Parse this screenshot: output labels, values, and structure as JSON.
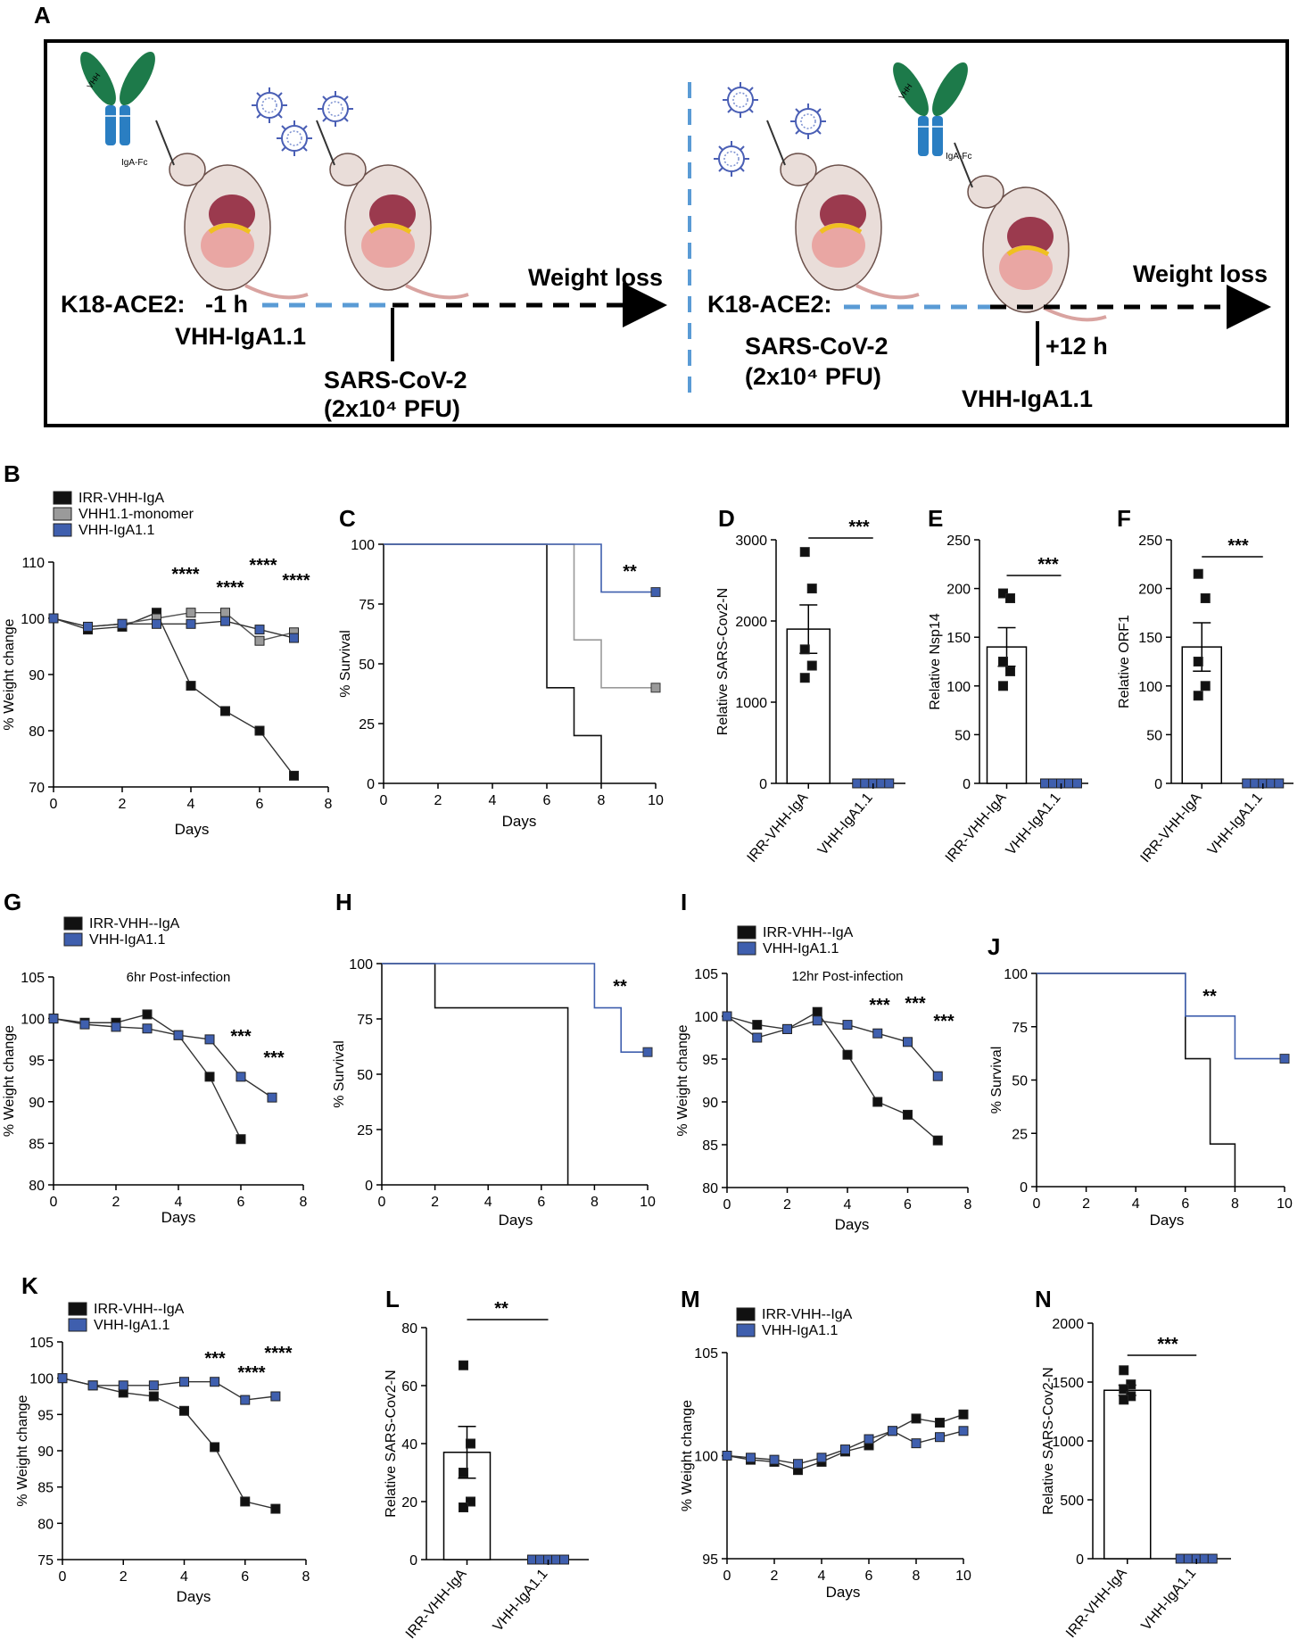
{
  "panel_letters": {
    "A": "A",
    "B": "B",
    "C": "C",
    "D": "D",
    "E": "E",
    "F": "F",
    "G": "G",
    "H": "H",
    "I": "I",
    "J": "J",
    "K": "K",
    "L": "L",
    "M": "M",
    "N": "N"
  },
  "schematic": {
    "left": {
      "strain": "K18-ACE2:",
      "time": "-1 h",
      "treatment": "VHH-IgA1.1",
      "weight": "Weight loss",
      "virus": "SARS-CoV-2",
      "dose": "(2x10⁴ PFU)",
      "fc": "IgA-Fc",
      "vhh": "VHH"
    },
    "right": {
      "strain": "K18-ACE2:",
      "virus": "SARS-CoV-2",
      "dose": "(2x10⁴ PFU)",
      "time": "+12 h",
      "treatment": "VHH-IgA1.1",
      "weight": "Weight loss",
      "fc": "IgA-Fc",
      "vhh": "VHH"
    }
  },
  "colors": {
    "irr": "#111111",
    "mono": "#9a9a9a",
    "vhh": "#3f5fae"
  },
  "chart_data": [
    {
      "panel": "B",
      "type": "line",
      "xlabel": "Days",
      "ylabel": "% Weight change",
      "xlim": [
        0,
        8
      ],
      "ylim": [
        70,
        110
      ],
      "xticks": [
        "0",
        "2",
        "4",
        "6",
        "8"
      ],
      "yticks": [
        "70",
        "80",
        "90",
        "100",
        "110"
      ],
      "legend": [
        "IRR-VHH-IgA",
        "VHH1.1-monomer",
        "VHH-IgA1.1"
      ],
      "series": [
        {
          "name": "IRR-VHH-IgA",
          "x": [
            0,
            1,
            2,
            3,
            4,
            5,
            6,
            7
          ],
          "values": [
            100,
            98,
            98.5,
            101,
            88,
            83.5,
            80,
            72
          ]
        },
        {
          "name": "VHH1.1-monomer",
          "x": [
            0,
            1,
            2,
            3,
            4,
            5,
            6,
            7
          ],
          "values": [
            100,
            98.5,
            99,
            100,
            101,
            101,
            96,
            97.5
          ]
        },
        {
          "name": "VHH-IgA1.1",
          "x": [
            0,
            1,
            2,
            3,
            4,
            5,
            6,
            7
          ],
          "values": [
            100,
            98.5,
            99,
            99,
            99,
            99.5,
            98,
            96.5
          ]
        }
      ],
      "annotations": [
        "****",
        "****",
        "****",
        "****"
      ]
    },
    {
      "panel": "C",
      "type": "line",
      "xlabel": "Days",
      "ylabel": "% Survival",
      "xlim": [
        0,
        10
      ],
      "ylim": [
        0,
        100
      ],
      "xticks": [
        "0",
        "2",
        "4",
        "6",
        "8",
        "10"
      ],
      "yticks": [
        "0",
        "25",
        "50",
        "75",
        "100"
      ],
      "series": [
        {
          "name": "IRR-VHH-IgA",
          "x": [
            0,
            6,
            7,
            8
          ],
          "values": [
            100,
            40,
            20,
            0
          ]
        },
        {
          "name": "VHH1.1-monomer",
          "x": [
            0,
            7,
            8,
            10
          ],
          "values": [
            100,
            60,
            40,
            40
          ]
        },
        {
          "name": "VHH-IgA1.1",
          "x": [
            0,
            8,
            10
          ],
          "values": [
            100,
            80,
            80
          ]
        }
      ],
      "annotations": [
        "**"
      ]
    },
    {
      "panel": "D",
      "type": "bar",
      "ylabel": "Relative SARS-Cov2-N",
      "categories": [
        "IRR-VHH-IgA",
        "VHH-IgA1.1"
      ],
      "values": [
        1900,
        0
      ],
      "ylim": [
        0,
        3000
      ],
      "yticks": [
        "0",
        "1000",
        "2000",
        "3000"
      ],
      "points": [
        [
          2850,
          2400,
          1650,
          1450,
          1300
        ],
        [
          0,
          0,
          0,
          0,
          0
        ]
      ],
      "annotations": [
        "***"
      ]
    },
    {
      "panel": "E",
      "type": "bar",
      "ylabel": "Relative Nsp14",
      "categories": [
        "IRR-VHH-IgA",
        "VHH-IgA1.1"
      ],
      "values": [
        140,
        0
      ],
      "ylim": [
        0,
        250
      ],
      "yticks": [
        "0",
        "50",
        "100",
        "150",
        "200",
        "250"
      ],
      "points": [
        [
          195,
          190,
          125,
          115,
          100
        ],
        [
          0,
          0,
          0,
          0,
          0
        ]
      ],
      "annotations": [
        "***"
      ]
    },
    {
      "panel": "F",
      "type": "bar",
      "ylabel": "Relative ORF1",
      "categories": [
        "IRR-VHH-IgA",
        "VHH-IgA1.1"
      ],
      "values": [
        140,
        0
      ],
      "ylim": [
        0,
        250
      ],
      "yticks": [
        "0",
        "50",
        "100",
        "150",
        "200",
        "250"
      ],
      "points": [
        [
          215,
          190,
          125,
          100,
          90
        ],
        [
          0,
          0,
          0,
          0,
          0
        ]
      ],
      "annotations": [
        "***"
      ]
    },
    {
      "panel": "G",
      "type": "line",
      "title": "6hr Post-infection",
      "xlabel": "Days",
      "ylabel": "% Weight change",
      "xlim": [
        0,
        8
      ],
      "ylim": [
        80,
        105
      ],
      "xticks": [
        "0",
        "2",
        "4",
        "6",
        "8"
      ],
      "yticks": [
        "80",
        "85",
        "90",
        "95",
        "100",
        "105"
      ],
      "legend": [
        "IRR-VHH--IgA",
        "VHH-IgA1.1"
      ],
      "series": [
        {
          "name": "IRR-VHH--IgA",
          "x": [
            0,
            1,
            2,
            3,
            4,
            5,
            6
          ],
          "values": [
            100,
            99.5,
            99.5,
            100.5,
            98,
            93,
            85.5
          ]
        },
        {
          "name": "VHH-IgA1.1",
          "x": [
            0,
            1,
            2,
            3,
            4,
            5,
            6,
            7
          ],
          "values": [
            100,
            99.3,
            99,
            98.8,
            98,
            97.5,
            93,
            90.5
          ]
        }
      ],
      "annotations": [
        "***",
        "***"
      ]
    },
    {
      "panel": "H",
      "type": "line",
      "xlabel": "Days",
      "ylabel": "% Survival",
      "xlim": [
        0,
        10
      ],
      "ylim": [
        0,
        100
      ],
      "xticks": [
        "0",
        "2",
        "4",
        "6",
        "8",
        "10"
      ],
      "yticks": [
        "0",
        "25",
        "50",
        "75",
        "100"
      ],
      "series": [
        {
          "name": "IRR-VHH--IgA",
          "x": [
            0,
            2,
            7
          ],
          "values": [
            100,
            80,
            0
          ]
        },
        {
          "name": "VHH-IgA1.1",
          "x": [
            0,
            8,
            9,
            10
          ],
          "values": [
            100,
            80,
            60,
            60
          ]
        }
      ],
      "annotations": [
        "**"
      ]
    },
    {
      "panel": "I",
      "type": "line",
      "title": "12hr Post-infection",
      "xlabel": "Days",
      "ylabel": "% Weight change",
      "xlim": [
        0,
        8
      ],
      "ylim": [
        80,
        105
      ],
      "xticks": [
        "0",
        "2",
        "4",
        "6",
        "8"
      ],
      "yticks": [
        "80",
        "85",
        "90",
        "95",
        "100",
        "105"
      ],
      "legend": [
        "IRR-VHH--IgA",
        "VHH-IgA1.1"
      ],
      "series": [
        {
          "name": "IRR-VHH--IgA",
          "x": [
            0,
            1,
            2,
            3,
            4,
            5,
            6,
            7
          ],
          "values": [
            100,
            99,
            98.5,
            100.5,
            95.5,
            90,
            88.5,
            85.5
          ]
        },
        {
          "name": "VHH-IgA1.1",
          "x": [
            0,
            1,
            2,
            3,
            4,
            5,
            6,
            7
          ],
          "values": [
            100,
            97.5,
            98.5,
            99.5,
            99,
            98,
            97,
            93
          ]
        }
      ],
      "annotations": [
        "***",
        "***",
        "***"
      ]
    },
    {
      "panel": "J",
      "type": "line",
      "xlabel": "Days",
      "ylabel": "% Survival",
      "xlim": [
        0,
        10
      ],
      "ylim": [
        0,
        100
      ],
      "xticks": [
        "0",
        "2",
        "4",
        "6",
        "8",
        "10"
      ],
      "yticks": [
        "0",
        "25",
        "50",
        "75",
        "100"
      ],
      "series": [
        {
          "name": "IRR-VHH--IgA",
          "x": [
            0,
            6,
            7,
            8
          ],
          "values": [
            100,
            60,
            20,
            0
          ]
        },
        {
          "name": "VHH-IgA1.1",
          "x": [
            0,
            6,
            8,
            10
          ],
          "values": [
            100,
            80,
            60,
            60
          ]
        }
      ],
      "annotations": [
        "**"
      ]
    },
    {
      "panel": "K",
      "type": "line",
      "xlabel": "Days",
      "ylabel": "% Weight change",
      "xlim": [
        0,
        8
      ],
      "ylim": [
        75,
        105
      ],
      "xticks": [
        "0",
        "2",
        "4",
        "6",
        "8"
      ],
      "yticks": [
        "75",
        "80",
        "85",
        "90",
        "95",
        "100",
        "105"
      ],
      "legend": [
        "IRR-VHH--IgA",
        "VHH-IgA1.1"
      ],
      "series": [
        {
          "name": "IRR-VHH--IgA",
          "x": [
            0,
            1,
            2,
            3,
            4,
            5,
            6,
            7
          ],
          "values": [
            100,
            99,
            98,
            97.5,
            95.5,
            90.5,
            83,
            82
          ]
        },
        {
          "name": "VHH-IgA1.1",
          "x": [
            0,
            1,
            2,
            3,
            4,
            5,
            6,
            7
          ],
          "values": [
            100,
            99,
            99,
            99,
            99.5,
            99.5,
            97,
            97.5
          ]
        }
      ],
      "annotations": [
        "***",
        "****",
        "****"
      ]
    },
    {
      "panel": "L",
      "type": "bar",
      "ylabel": "Relative SARS-Cov2-N",
      "categories": [
        "IRR-VHH-IgA",
        "VHH-IgA1.1"
      ],
      "values": [
        37,
        0
      ],
      "ylim": [
        0,
        80
      ],
      "yticks": [
        "0",
        "20",
        "40",
        "60",
        "80"
      ],
      "points": [
        [
          67,
          40,
          30,
          20,
          18
        ],
        [
          0,
          0,
          0,
          0,
          0
        ]
      ],
      "annotations": [
        "**"
      ]
    },
    {
      "panel": "M",
      "type": "line",
      "xlabel": "Days",
      "ylabel": "% Weight change",
      "xlim": [
        0,
        10
      ],
      "ylim": [
        95,
        105
      ],
      "xticks": [
        "0",
        "2",
        "4",
        "6",
        "8",
        "10"
      ],
      "yticks": [
        "95",
        "100",
        "105"
      ],
      "legend": [
        "IRR-VHH--IgA",
        "VHH-IgA1.1"
      ],
      "series": [
        {
          "name": "IRR-VHH--IgA",
          "x": [
            0,
            1,
            2,
            3,
            4,
            5,
            6,
            7,
            8,
            9,
            10
          ],
          "values": [
            100,
            99.8,
            99.7,
            99.3,
            99.7,
            100.2,
            100.5,
            101.2,
            101.8,
            101.6,
            102
          ]
        },
        {
          "name": "VHH-IgA1.1",
          "x": [
            0,
            1,
            2,
            3,
            4,
            5,
            6,
            7,
            8,
            9,
            10
          ],
          "values": [
            100,
            99.9,
            99.8,
            99.6,
            99.9,
            100.3,
            100.8,
            101.2,
            100.6,
            100.9,
            101.2
          ]
        }
      ]
    },
    {
      "panel": "N",
      "type": "bar",
      "ylabel": "Relative SARS-Cov2-N",
      "categories": [
        "IRR-VHH-IgA",
        "VHH-IgA1.1"
      ],
      "values": [
        1430,
        0
      ],
      "ylim": [
        0,
        2000
      ],
      "yticks": [
        "0",
        "500",
        "1000",
        "1500",
        "2000"
      ],
      "points": [
        [
          1600,
          1480,
          1440,
          1380,
          1350
        ],
        [
          0,
          0,
          0,
          0,
          0
        ]
      ],
      "annotations": [
        "***"
      ]
    }
  ]
}
